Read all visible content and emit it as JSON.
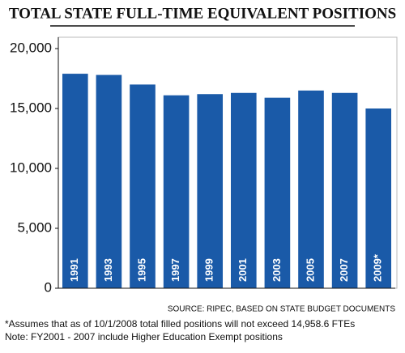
{
  "chart_data": {
    "type": "bar",
    "title": "TOTAL STATE FULL-TIME EQUIVALENT POSITIONS",
    "categories": [
      "1991",
      "1993",
      "1995",
      "1997",
      "1999",
      "2001",
      "2003",
      "2005",
      "2007",
      "2009*"
    ],
    "values": [
      17900,
      17800,
      17000,
      16100,
      16200,
      16300,
      15900,
      16500,
      16300,
      15000
    ],
    "color": "#1a5aa8",
    "ylim": [
      0,
      20000
    ],
    "yticks": [
      0,
      {
        "value": 5000,
        "label": "5,000"
      },
      {
        "value": 10000,
        "label": "10,000"
      },
      {
        "value": 15000,
        "label": "15,000"
      },
      {
        "value": 20000,
        "label": "20,000"
      }
    ],
    "source": "SOURCE: RIPEC, BASED ON STATE BUDGET DOCUMENTS",
    "notes": [
      "*Assumes that as of 10/1/2008 total filled positions will not exceed 14,958.6 FTEs",
      "Note: FY2001 - 2007 include Higher Education Exempt positions"
    ]
  }
}
